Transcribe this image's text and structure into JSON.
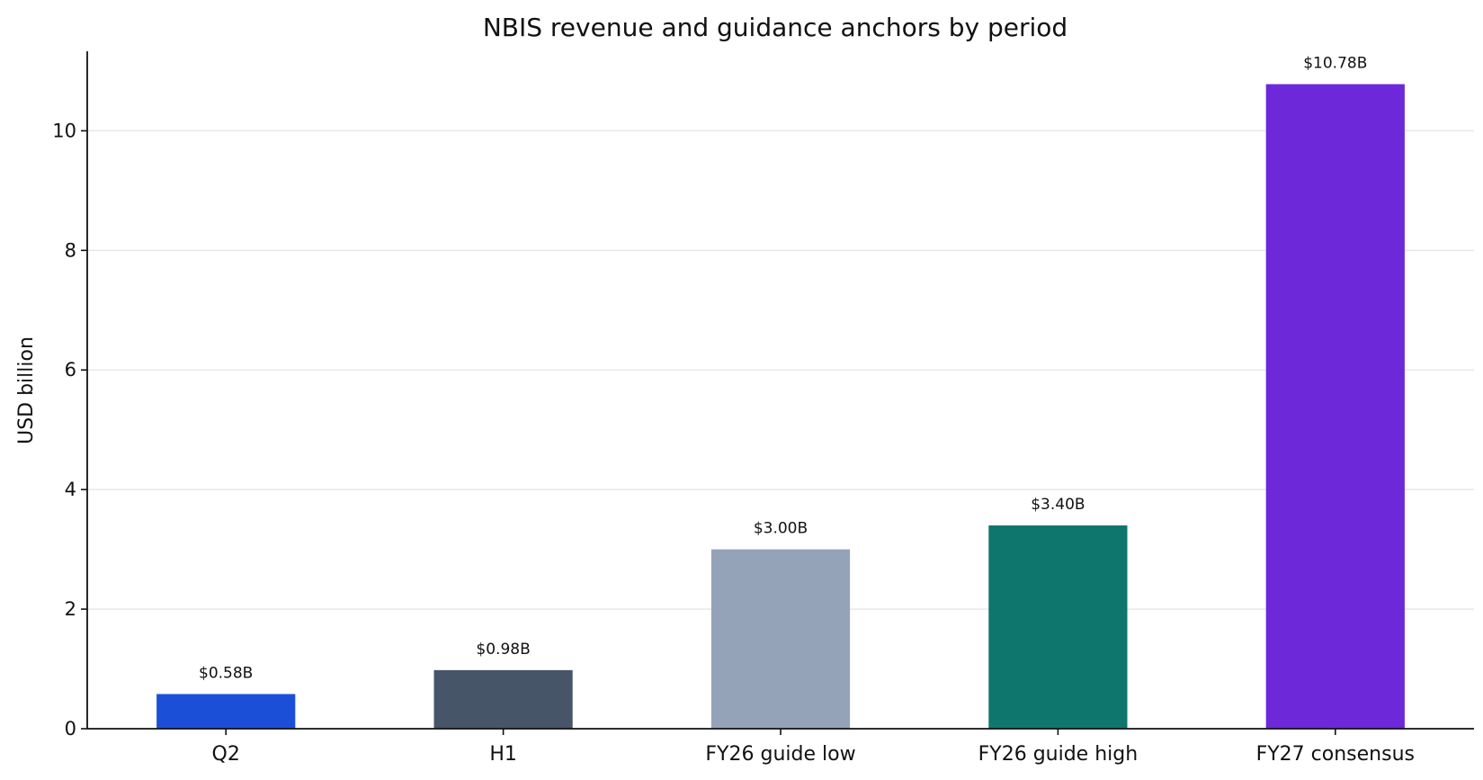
{
  "chart_data": {
    "type": "bar",
    "title": "NBIS revenue and guidance anchors by period",
    "xlabel": "",
    "ylabel": "USD billion",
    "categories": [
      "Q2",
      "H1",
      "FY26 guide low",
      "FY26 guide high",
      "FY27 consensus"
    ],
    "values": [
      0.58,
      0.98,
      3.0,
      3.4,
      10.78
    ],
    "data_labels": [
      "$0.58B",
      "$0.98B",
      "$3.00B",
      "$3.40B",
      "$10.78B"
    ],
    "colors": [
      "#1c4fd8",
      "#475569",
      "#94a3b8",
      "#0f766e",
      "#6d28d9"
    ],
    "ylim": [
      0,
      11.33
    ],
    "yticks": [
      0,
      2,
      4,
      6,
      8,
      10
    ],
    "grid": "y-only",
    "legend": "none"
  }
}
